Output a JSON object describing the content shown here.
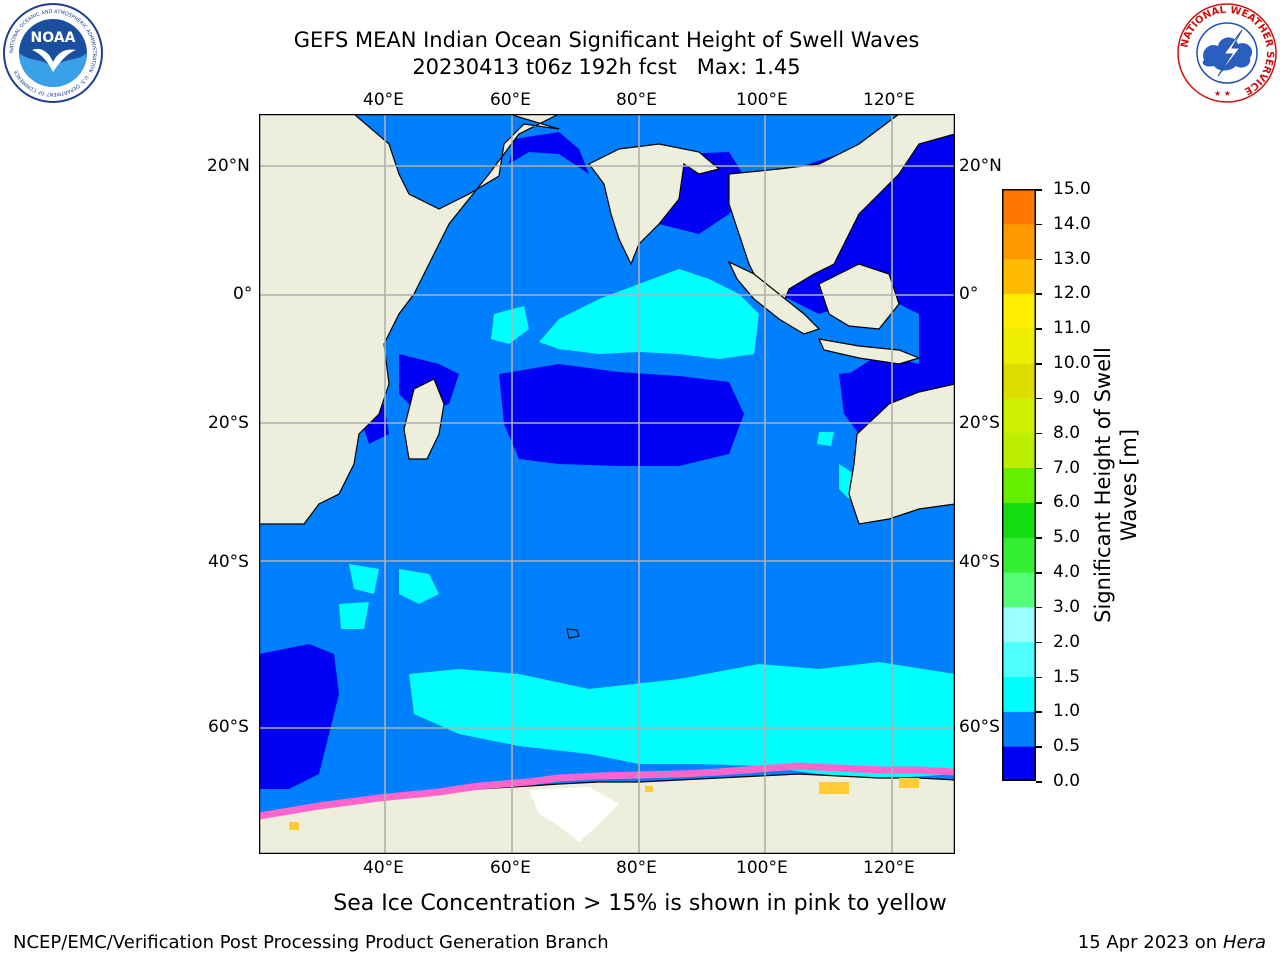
{
  "header": {
    "title_line1": "GEFS MEAN Indian Ocean Significant Height of Swell Waves",
    "title_line2": "20230413 t06z 192h fcst   Max: 1.45"
  },
  "logos": {
    "left": {
      "text": "NOAA",
      "ring_text": "NATIONAL OCEANIC AND ATMOSPHERIC ADMINISTRATION · U.S. DEPARTMENT OF COMMERCE"
    },
    "right": {
      "ring_text": "NATIONAL WEATHER SERVICE"
    }
  },
  "map": {
    "lon_top": [
      "40°E",
      "60°E",
      "80°E",
      "100°E",
      "120°E"
    ],
    "lon_bottom": [
      "40°E",
      "60°E",
      "80°E",
      "100°E",
      "120°E"
    ],
    "lat_left": [
      "20°N",
      "0°",
      "20°S",
      "40°S",
      "60°S"
    ],
    "lat_right": [
      "20°N",
      "0°",
      "20°S",
      "40°S",
      "60°S"
    ],
    "colors": {
      "land": "#eeeedc",
      "band_0_05": "#0000f4",
      "band_05_10": "#0080ff",
      "band_10_15": "#00ffff",
      "band_15_20": "#33ffff",
      "ice_pink": "#ff66cc",
      "ice_magenta": "#ff33ff",
      "ice_yellow": "#ffcc33",
      "ice_white": "#ffffff",
      "grid": "#b0b0b0"
    }
  },
  "colorbar": {
    "label": "Significant Height of Swell Waves [m]",
    "ticks": [
      "15.0",
      "14.0",
      "13.0",
      "12.0",
      "11.0",
      "10.0",
      "9.0",
      "8.0",
      "7.0",
      "6.0",
      "5.0",
      "4.0",
      "3.0",
      "2.0",
      "1.5",
      "1.0",
      "0.5",
      "0.0"
    ],
    "colors_bottom_to_top": [
      "#0000f4",
      "#0080ff",
      "#00ffff",
      "#4dffff",
      "#99ffff",
      "#55ff77",
      "#33ee33",
      "#11dd11",
      "#66ee00",
      "#bbee00",
      "#ccf000",
      "#dddd00",
      "#eeee00",
      "#ffee00",
      "#ffbb00",
      "#ff9900",
      "#ff7700",
      "#ff4400",
      "#ff1100"
    ]
  },
  "subtitle": "Sea Ice Concentration > 15% is shown in pink to yellow",
  "footer": {
    "left": "NCEP/EMC/Verification Post Processing Product Generation Branch",
    "right_prefix": "15 Apr 2023 on ",
    "right_host": "Hera"
  }
}
